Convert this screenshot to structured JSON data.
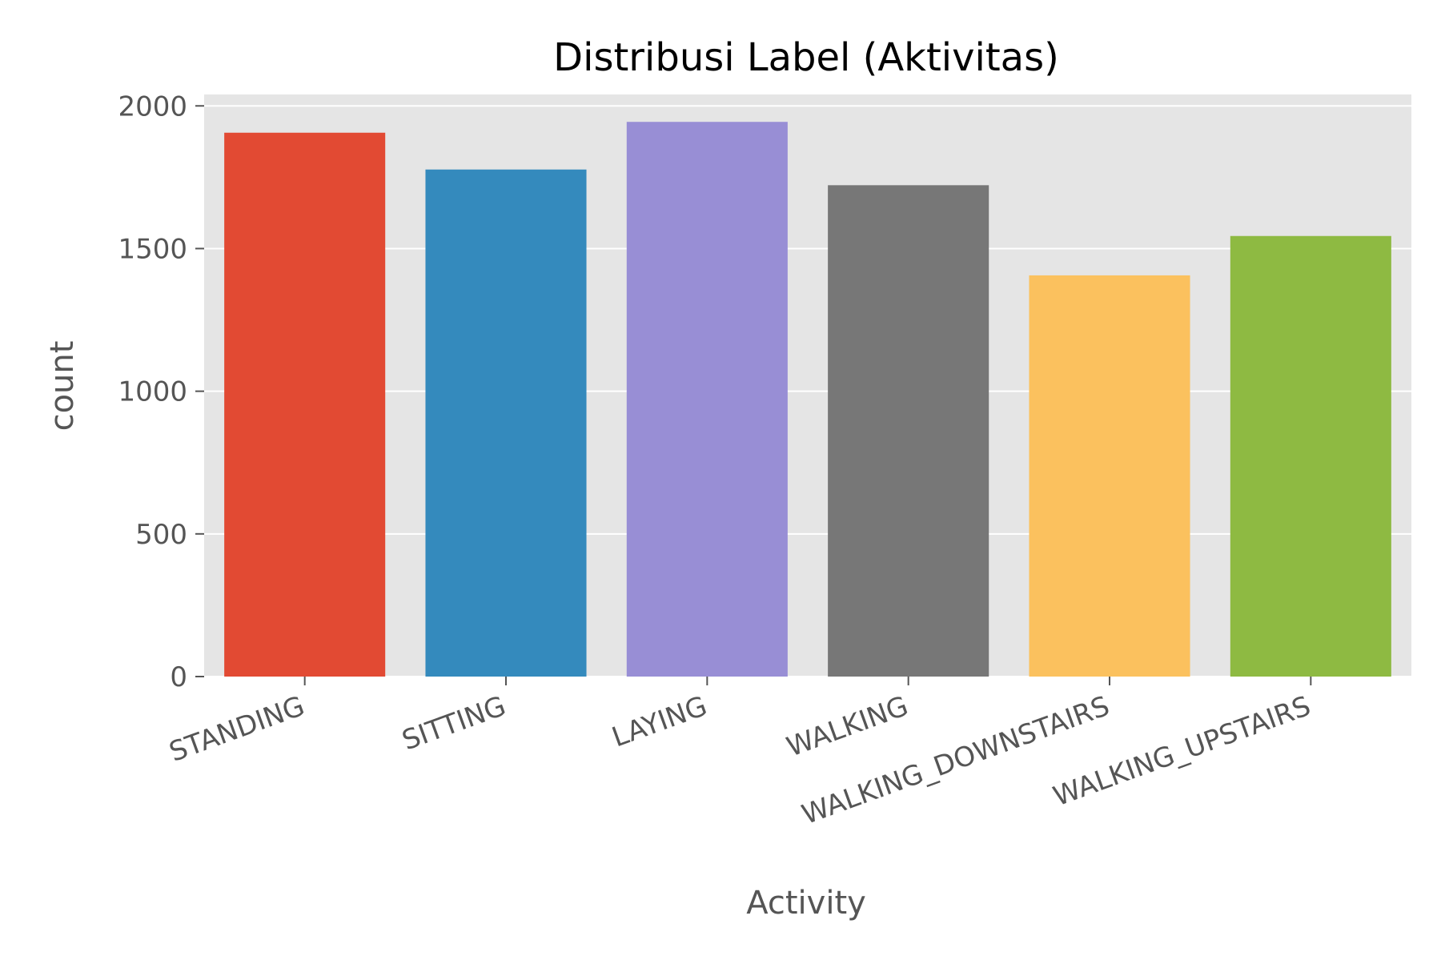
{
  "chart_data": {
    "type": "bar",
    "title": "Distribusi Label (Aktivitas)",
    "xlabel": "Activity",
    "ylabel": "count",
    "categories": [
      "STANDING",
      "SITTING",
      "LAYING",
      "WALKING",
      "WALKING_DOWNSTAIRS",
      "WALKING_UPSTAIRS"
    ],
    "values": [
      1906,
      1777,
      1944,
      1722,
      1406,
      1544
    ],
    "colors": [
      "#E24A33",
      "#348ABD",
      "#988ED5",
      "#777777",
      "#FBC15E",
      "#8EBA42"
    ],
    "ylim": [
      0,
      2040
    ],
    "yticks": [
      0,
      500,
      1000,
      1500,
      2000
    ],
    "grid": true,
    "style": "ggplot",
    "background_color": "#E5E5E5"
  }
}
